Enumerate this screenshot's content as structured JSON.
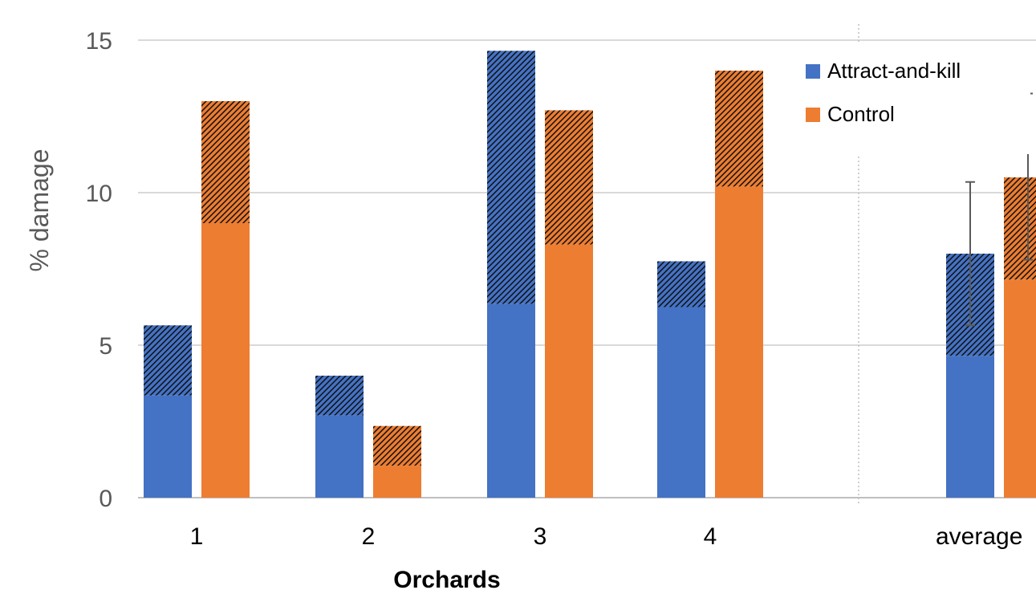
{
  "chart_data": {
    "type": "bar",
    "categories": [
      "1",
      "2",
      "3",
      "4",
      "average"
    ],
    "series": [
      {
        "name": "Attract-and-kill",
        "color": "#4472C4",
        "solid_values": [
          3.35,
          2.7,
          6.35,
          6.25,
          4.65
        ],
        "total_values": [
          5.65,
          4.0,
          14.65,
          7.75,
          8.0
        ]
      },
      {
        "name": "Control",
        "color": "#ED7D31",
        "solid_values": [
          9.0,
          1.05,
          8.3,
          10.2,
          7.15
        ],
        "total_values": [
          13.0,
          2.35,
          12.7,
          14.0,
          10.5
        ]
      }
    ],
    "error_bars": {
      "category": "average",
      "Attract-and-kill": [
        5.65,
        10.35
      ],
      "Control": [
        7.8,
        13.25
      ]
    },
    "xlabel": "Orchards",
    "ylabel": "% damage",
    "ylim": [
      0,
      15
    ],
    "yticks": [
      "0",
      "5",
      "10",
      "15"
    ],
    "grid": true,
    "legend_position": "top-right",
    "hatch": "diagonal hatched upper segment of each bar"
  }
}
